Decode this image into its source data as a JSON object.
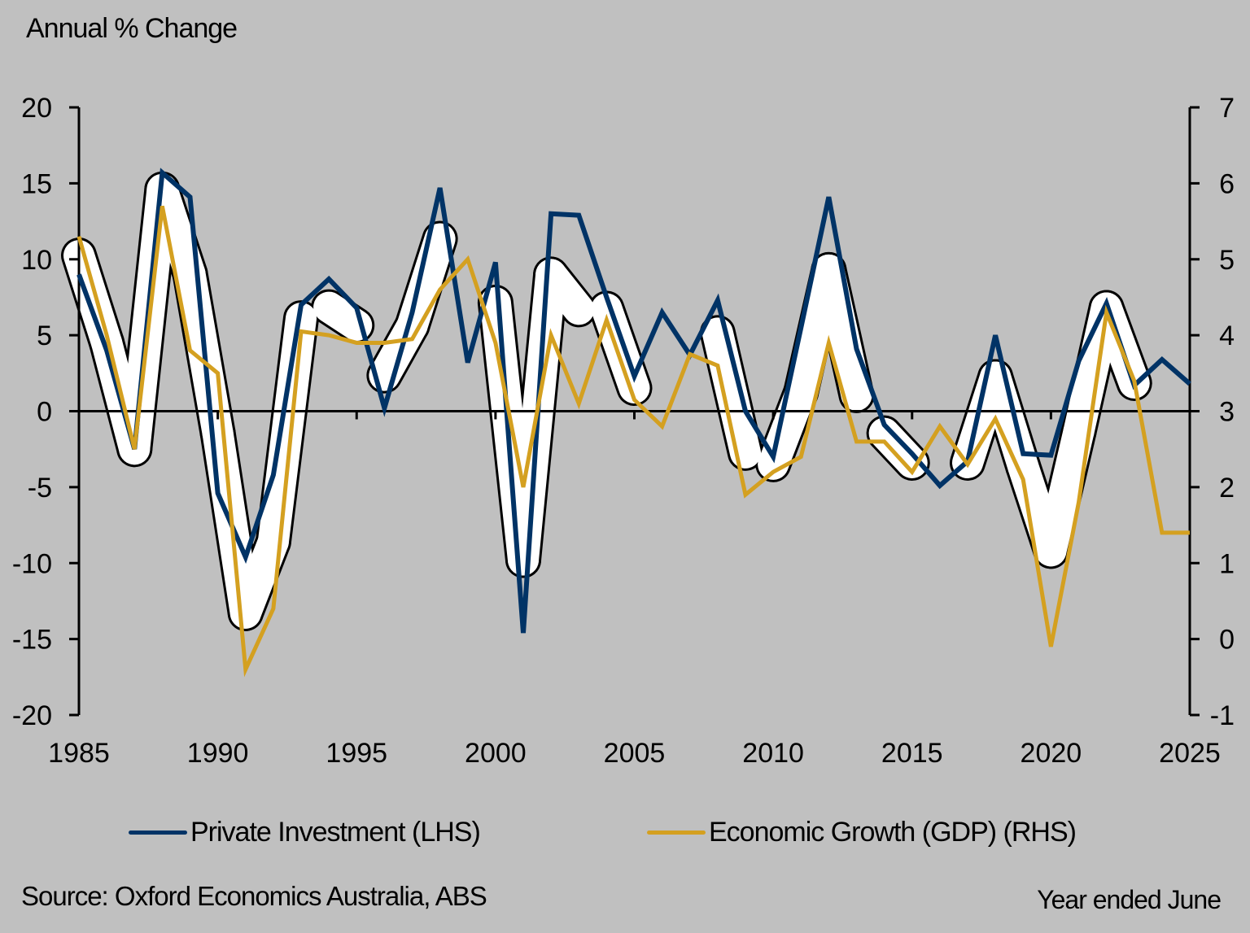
{
  "chart_data": {
    "type": "line",
    "title": "",
    "ylabel": "Annual % Change",
    "xlabel": "",
    "x": [
      1985,
      1986,
      1987,
      1988,
      1989,
      1990,
      1991,
      1992,
      1993,
      1994,
      1995,
      1996,
      1997,
      1998,
      1999,
      2000,
      2001,
      2002,
      2003,
      2004,
      2005,
      2006,
      2007,
      2008,
      2009,
      2010,
      2011,
      2012,
      2013,
      2014,
      2015,
      2016,
      2017,
      2018,
      2019,
      2020,
      2021,
      2022,
      2023,
      2024,
      2025
    ],
    "series": [
      {
        "name": "Private Investment (LHS)",
        "axis": "left",
        "color": "#003366",
        "values": [
          9.0,
          4.0,
          -2.5,
          15.7,
          14.1,
          -5.4,
          -9.6,
          -4.2,
          7.0,
          8.7,
          6.8,
          0.2,
          6.5,
          14.7,
          3.2,
          9.8,
          -14.6,
          13.0,
          12.9,
          7.5,
          2.3,
          6.5,
          3.7,
          7.3,
          0.0,
          -3.0,
          5.5,
          14.1,
          4.1,
          -0.9,
          -2.8,
          -4.9,
          -3.3,
          5.0,
          -2.8,
          -2.9,
          3.3,
          7.1,
          1.7,
          3.4,
          1.8
        ]
      },
      {
        "name": "Economic Growth (GDP) (RHS)",
        "axis": "right",
        "color": "#d4a020",
        "values": [
          5.3,
          4.0,
          2.5,
          5.7,
          3.8,
          3.5,
          -0.4,
          0.4,
          4.05,
          4.0,
          3.9,
          3.9,
          3.95,
          4.6,
          5.0,
          3.9,
          2.0,
          4.0,
          3.1,
          4.2,
          3.15,
          2.8,
          3.75,
          3.6,
          1.9,
          2.2,
          2.4,
          3.9,
          2.6,
          2.6,
          2.2,
          2.8,
          2.3,
          2.9,
          2.1,
          -0.1,
          1.8,
          4.3,
          3.4,
          1.4,
          1.4
        ]
      }
    ],
    "left_axis": {
      "min": -20,
      "max": 20,
      "ticks": [
        20,
        15,
        10,
        5,
        0,
        -5,
        -10,
        -15,
        -20
      ]
    },
    "right_axis": {
      "min": -1,
      "max": 7,
      "ticks": [
        7,
        6,
        5,
        4,
        3,
        2,
        1,
        0,
        -1
      ]
    },
    "x_ticks": [
      1985,
      1990,
      1995,
      2000,
      2005,
      2010,
      2015,
      2020,
      2025
    ],
    "grid": false,
    "legend_position": "bottom",
    "annotations": [
      "White highlight bands mark periods where investment and GDP move together"
    ]
  },
  "header": {
    "axis_title": "Annual % Change"
  },
  "legend": {
    "items": [
      {
        "label": "Private Investment (LHS)",
        "color": "#003366"
      },
      {
        "label": "Economic Growth (GDP) (RHS)",
        "color": "#d4a020"
      }
    ]
  },
  "footer": {
    "source": "Source: Oxford Economics Australia, ABS",
    "note": "Year ended June"
  }
}
